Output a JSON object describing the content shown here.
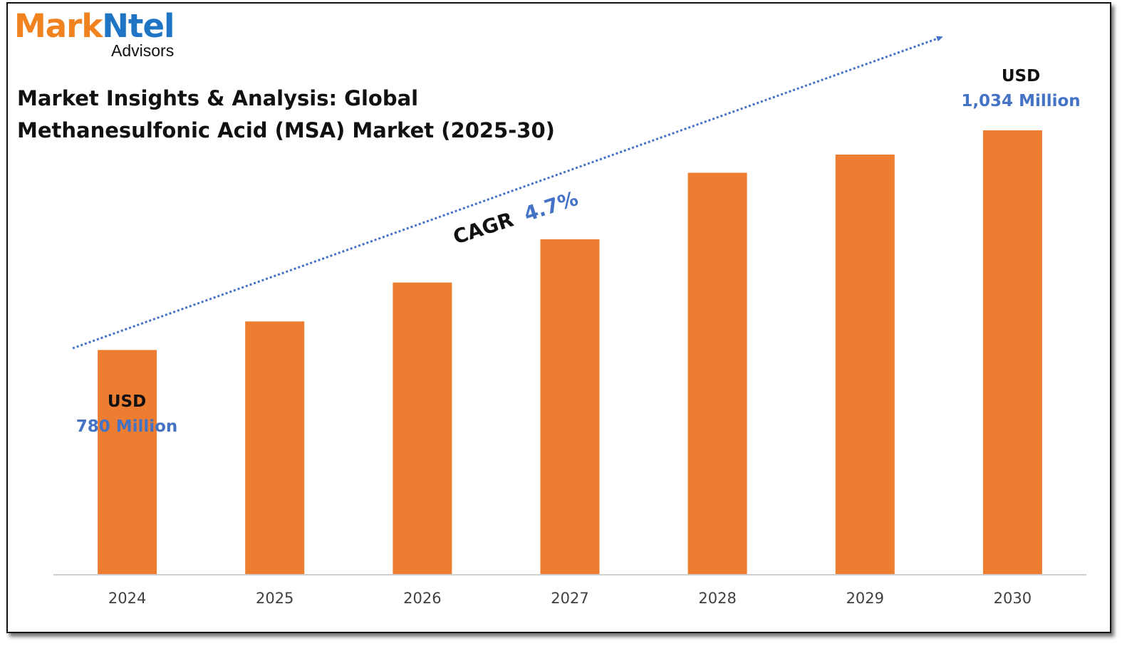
{
  "brand": {
    "name_part1": "Mark",
    "name_part2": "Ntel",
    "tagline": "Advisors",
    "colors": {
      "orange": "#f08220",
      "blue": "#1f75c4"
    }
  },
  "title_line1": "Market Insights & Analysis: Global",
  "title_line2": "Methanesulfonic Acid (MSA) Market (2025-30)",
  "chart_data": {
    "type": "bar",
    "categories": [
      "2024",
      "2025",
      "2026",
      "2027",
      "2028",
      "2029",
      "2030"
    ],
    "values": [
      780,
      813,
      858,
      908,
      985,
      1006,
      1034
    ],
    "unit": "USD Million",
    "ylim": [
      520,
      1040
    ],
    "bar_color": "#ed7d31",
    "annotations": {
      "start": {
        "currency": "USD",
        "value": "780 Million"
      },
      "end": {
        "currency": "USD",
        "value": "1,034 Million"
      },
      "cagr": {
        "label": "CAGR",
        "value": "4.7%"
      }
    },
    "label_colors": {
      "currency": "#111111",
      "value": "#4472c4"
    },
    "trend_color": "#4472c4",
    "grid": false,
    "legend": "none"
  }
}
